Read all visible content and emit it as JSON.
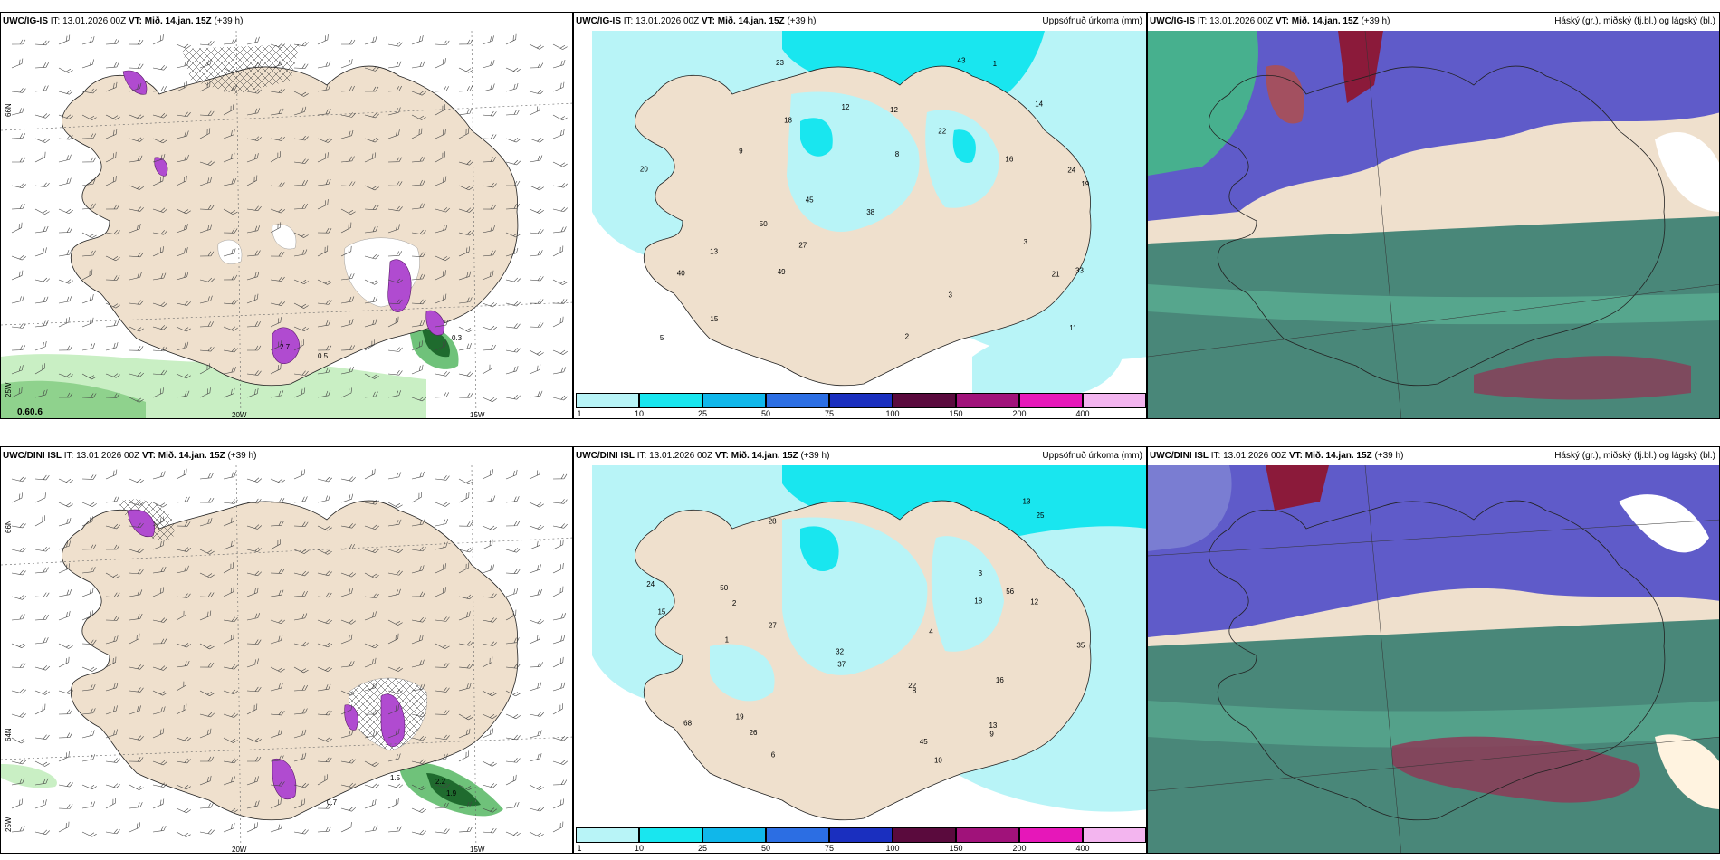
{
  "panels": {
    "top_left": {
      "model": "UWC/IG-IS",
      "it": "IT: 13.01.2026 00Z",
      "vt": "VT: Mið. 14.jan. 15Z",
      "lead": "(+39 h)",
      "right": ""
    },
    "top_mid": {
      "model": "UWC/IG-IS",
      "it": "IT: 13.01.2026 00Z",
      "vt": "VT: Mið. 14.jan. 15Z",
      "lead": "(+39 h)",
      "right": "Uppsöfnuð úrkoma (mm)"
    },
    "top_right": {
      "model": "UWC/IG-IS",
      "it": "IT: 13.01.2026 00Z",
      "vt": "VT: Mið. 14.jan. 15Z",
      "lead": "(+39 h)",
      "right": "Háský (gr.), miðský (fj.bl.) og lágský (bl.)"
    },
    "bot_left": {
      "model": "UWC/DINI ISL",
      "it": "IT: 13.01.2026 00Z",
      "vt": "VT: Mið. 14.jan. 15Z",
      "lead": "(+39 h)",
      "right": ""
    },
    "bot_mid": {
      "model": "UWC/DINI ISL",
      "it": "IT: 13.01.2026 00Z",
      "vt": "VT: Mið. 14.jan. 15Z",
      "lead": "(+39 h)",
      "right": "Uppsöfnuð úrkoma (mm)"
    },
    "bot_right": {
      "model": "UWC/DINI ISL",
      "it": "IT: 13.01.2026 00Z",
      "vt": "VT: Mið. 14.jan. 15Z",
      "lead": "(+39 h)",
      "right": "Háský (gr.), miðský (fj.bl.) og lágský (bl.)"
    }
  },
  "grid_labels": {
    "lat_66": "66N",
    "lat_64": "64N",
    "lat_25w": "25W",
    "lon_20w": "20W",
    "lon_15w": "15W"
  },
  "colorbar": {
    "ticks": [
      "1",
      "10",
      "25",
      "50",
      "75",
      "100",
      "150",
      "200",
      "400"
    ],
    "colors": [
      "#b8f4f7",
      "#19e6ef",
      "#10b7ea",
      "#2c6ee3",
      "#1a2fbf",
      "#5a0a3d",
      "#a0127a",
      "#e617b9",
      "#f3b5ef"
    ]
  },
  "precip_values_top": [
    "18",
    "24",
    "22",
    "19",
    "45",
    "33",
    "27",
    "43",
    "21",
    "14",
    "9",
    "3",
    "16",
    "49",
    "40",
    "38",
    "50",
    "20",
    "23",
    "12",
    "11",
    "12",
    "15",
    "13",
    "8",
    "1",
    "5",
    "3",
    "2"
  ],
  "precip_values_bot": [
    "10",
    "28",
    "19",
    "50",
    "56",
    "45",
    "35",
    "27",
    "37",
    "26",
    "68",
    "24",
    "32",
    "22",
    "18",
    "13",
    "15",
    "25",
    "16",
    "12",
    "13",
    "8",
    "6",
    "9",
    "4",
    "3",
    "1",
    "2"
  ],
  "lw_labels_top": [
    "0.6",
    "0.6",
    "0.3",
    "2.7",
    "0.5"
  ],
  "lw_labels_bot": [
    "1.5",
    "0.7",
    "2.2",
    "1.9"
  ],
  "colors": {
    "land": "#efe0cd",
    "sea_precip": "#b8f4f7",
    "cloud_high": "#5f5bc9",
    "cloud_low": "#3a8a7a",
    "magenta": "#b04bd0",
    "green": "#7dcf86"
  }
}
